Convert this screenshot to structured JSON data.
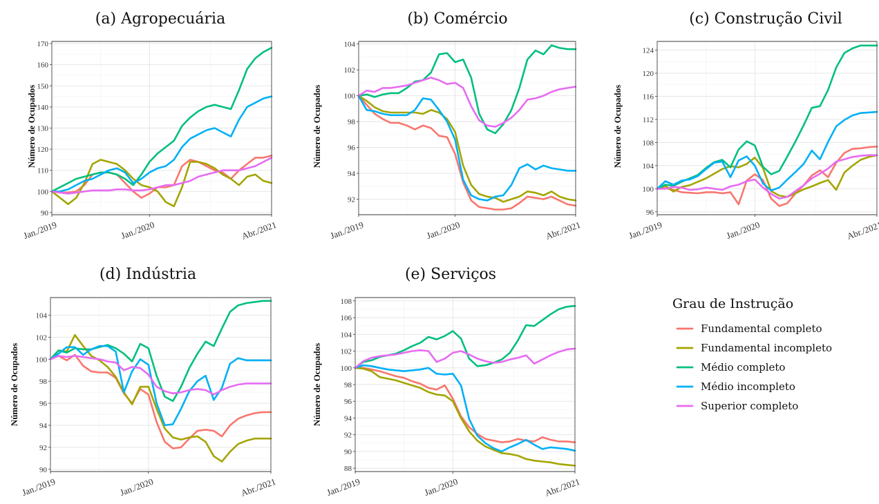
{
  "legend": {
    "title": "Grau de Instrução",
    "items": [
      {
        "name": "Fundamental completo",
        "color": "#F8766D"
      },
      {
        "name": "Fundamental incompleto",
        "color": "#A3A500"
      },
      {
        "name": "Médio completo",
        "color": "#00BF7D"
      },
      {
        "name": "Médio incompleto",
        "color": "#00B0F6"
      },
      {
        "name": "Superior completo",
        "color": "#E76BF3"
      }
    ]
  },
  "chart_data": [
    {
      "type": "line",
      "title": "(a) Agropecuária",
      "ylabel": "Número de Ocupados",
      "ylim": [
        89,
        171
      ],
      "yticks": [
        90,
        100,
        110,
        120,
        130,
        140,
        150,
        160,
        170
      ],
      "xticks": [
        {
          "x": 1,
          "label": "Jan./2019"
        },
        {
          "x": 13,
          "label": "Jan./2020"
        },
        {
          "x": 28,
          "label": "Abr./2021"
        }
      ],
      "series": [
        {
          "name": "Fundamental completo",
          "values": [
            100,
            99.5,
            99.5,
            100,
            103,
            108,
            109,
            109,
            108,
            104,
            100,
            97,
            99,
            102,
            102,
            103,
            112,
            115,
            114,
            112,
            110,
            109,
            106,
            110,
            113,
            116,
            116,
            117
          ]
        },
        {
          "name": "Fundamental incompleto",
          "values": [
            100,
            97,
            94,
            97,
            104,
            113,
            115,
            114,
            113,
            110,
            106,
            103,
            102,
            100,
            95,
            93,
            102,
            114,
            114,
            113,
            111,
            108,
            106,
            103,
            107,
            108,
            105,
            104
          ]
        },
        {
          "name": "Médio completo",
          "values": [
            100,
            102,
            104,
            106,
            107,
            108,
            109,
            109,
            108,
            106,
            103,
            108,
            114,
            118,
            121,
            124,
            131,
            135,
            138,
            140,
            141,
            140,
            139,
            148,
            158,
            163,
            166,
            168
          ]
        },
        {
          "name": "Médio incompleto",
          "values": [
            100,
            100,
            101,
            103,
            105,
            106,
            108,
            110,
            111,
            109,
            104,
            106,
            109,
            111,
            112,
            115,
            121,
            125,
            127,
            129,
            130,
            128,
            126,
            134,
            140,
            142,
            144,
            145
          ]
        },
        {
          "name": "Superior completo",
          "values": [
            100,
            99.5,
            99,
            99.5,
            100,
            100.5,
            100.5,
            100.5,
            101,
            101,
            100.5,
            100.5,
            101,
            102,
            103,
            103,
            104,
            105,
            107,
            108,
            109,
            110,
            110,
            110,
            111,
            112,
            114,
            116
          ]
        }
      ]
    },
    {
      "type": "line",
      "title": "(b) Comércio",
      "ylabel": "Número de Ocupados",
      "ylim": [
        90.8,
        104.2
      ],
      "yticks": [
        92,
        94,
        96,
        98,
        100,
        102,
        104
      ],
      "xticks": [
        {
          "x": 1,
          "label": "Jan./2019"
        },
        {
          "x": 13,
          "label": "Jan./2020"
        },
        {
          "x": 28,
          "label": "Abr./2021"
        }
      ],
      "series": [
        {
          "name": "Fundamental completo",
          "values": [
            100,
            99.3,
            98.6,
            98.2,
            97.9,
            97.9,
            97.7,
            97.4,
            97.7,
            97.5,
            96.9,
            96.8,
            95.5,
            93.3,
            91.9,
            91.4,
            91.3,
            91.2,
            91.2,
            91.3,
            91.7,
            92.2,
            92.1,
            92.0,
            92.2,
            91.9,
            91.6,
            91.5
          ]
        },
        {
          "name": "Fundamental incompleto",
          "values": [
            100,
            99.6,
            99.1,
            98.8,
            98.7,
            98.7,
            98.7,
            98.7,
            98.6,
            98.9,
            98.7,
            98.2,
            97.2,
            94.6,
            93.1,
            92.4,
            92.2,
            92.1,
            91.8,
            92.0,
            92.2,
            92.6,
            92.5,
            92.3,
            92.6,
            92.2,
            92.0,
            91.9
          ]
        },
        {
          "name": "Médio completo",
          "values": [
            100,
            100.1,
            99.9,
            100.1,
            100.2,
            100.2,
            100.6,
            101.1,
            101.2,
            101.8,
            103.2,
            103.3,
            102.6,
            102.8,
            101.4,
            98.6,
            97.4,
            97.1,
            97.8,
            98.9,
            100.6,
            102.8,
            103.5,
            103.2,
            103.9,
            103.7,
            103.6,
            103.6
          ]
        },
        {
          "name": "Médio incompleto",
          "values": [
            100,
            98.9,
            98.8,
            98.6,
            98.5,
            98.5,
            98.5,
            98.9,
            99.8,
            99.7,
            98.9,
            98.0,
            96.6,
            93.5,
            92.3,
            92.0,
            91.9,
            92.2,
            92.3,
            93.1,
            94.4,
            94.7,
            94.3,
            94.6,
            94.4,
            94.3,
            94.2,
            94.2
          ]
        },
        {
          "name": "Superior completo",
          "values": [
            100,
            100.4,
            100.3,
            100.6,
            100.6,
            100.7,
            100.8,
            101.0,
            101.2,
            101.4,
            101.2,
            100.9,
            101.0,
            100.6,
            99.2,
            98.1,
            97.7,
            97.6,
            97.9,
            98.3,
            98.9,
            99.7,
            99.8,
            100.0,
            100.3,
            100.5,
            100.6,
            100.7
          ]
        }
      ]
    },
    {
      "type": "line",
      "title": "(c) Construção Civil",
      "ylabel": "Número de Ocupados",
      "ylim": [
        95.5,
        125.5
      ],
      "yticks": [
        96,
        100,
        104,
        108,
        112,
        116,
        120,
        124
      ],
      "xticks": [
        {
          "x": 1,
          "label": "Jan./2019"
        },
        {
          "x": 13,
          "label": "Jan./2020"
        },
        {
          "x": 28,
          "label": "Abr./2021"
        }
      ],
      "series": [
        {
          "name": "Fundamental completo",
          "values": [
            100,
            100.1,
            99.8,
            99.4,
            99.3,
            99.2,
            99.4,
            99.4,
            99.2,
            99.4,
            97.3,
            101.4,
            102.5,
            101.5,
            98.3,
            97.0,
            97.5,
            99.2,
            100.6,
            102.3,
            103.2,
            102.0,
            104.5,
            106.2,
            106.9,
            107.0,
            107.2,
            107.3
          ]
        },
        {
          "name": "Fundamental incompleto",
          "values": [
            100,
            100.5,
            99.5,
            100.3,
            100.6,
            101.2,
            101.8,
            102.6,
            103.4,
            103.9,
            103.7,
            104.3,
            105.4,
            103.6,
            99.6,
            98.8,
            98.6,
            99.2,
            99.9,
            100.4,
            101.0,
            101.5,
            99.8,
            102.8,
            104.0,
            105.0,
            105.5,
            105.8
          ]
        },
        {
          "name": "Médio completo",
          "values": [
            100,
            100.7,
            100.5,
            101.2,
            101.8,
            102.4,
            103.6,
            104.6,
            105.0,
            103.7,
            106.8,
            108.2,
            107.5,
            103.8,
            102.5,
            103.1,
            105.6,
            108.2,
            111.0,
            114.0,
            114.3,
            117.1,
            121.0,
            123.5,
            124.3,
            124.8,
            124.8,
            124.8
          ]
        },
        {
          "name": "Médio incompleto",
          "values": [
            100,
            101.3,
            100.7,
            101.4,
            101.6,
            102.2,
            103.4,
            104.5,
            104.7,
            102.0,
            104.9,
            105.6,
            104.0,
            100.9,
            99.7,
            100.2,
            101.6,
            102.9,
            104.3,
            106.6,
            105.1,
            108.1,
            110.8,
            111.9,
            112.7,
            113.1,
            113.2,
            113.3
          ]
        },
        {
          "name": "Superior completo",
          "values": [
            100,
            100.0,
            100.3,
            100.2,
            99.8,
            99.9,
            100.2,
            100.0,
            99.8,
            100.4,
            100.7,
            101.3,
            101.6,
            100.2,
            99.1,
            98.3,
            98.6,
            99.6,
            100.6,
            101.8,
            102.6,
            103.5,
            104.7,
            105.1,
            105.5,
            105.7,
            105.8,
            105.8
          ]
        }
      ]
    },
    {
      "type": "line",
      "title": "(d) Indústria",
      "ylabel": "Número de Ocupados",
      "ylim": [
        89.8,
        105.6
      ],
      "yticks": [
        90,
        92,
        94,
        96,
        98,
        100,
        102,
        104
      ],
      "xticks": [
        {
          "x": 1,
          "label": "Jan./2019"
        },
        {
          "x": 13,
          "label": "Jan./2020"
        },
        {
          "x": 28,
          "label": "Abr./2021"
        }
      ],
      "series": [
        {
          "name": "Fundamental completo",
          "values": [
            100,
            100.3,
            99.9,
            100.4,
            99.4,
            98.9,
            98.8,
            98.8,
            98.3,
            96.9,
            96.0,
            97.3,
            96.8,
            94.3,
            92.5,
            91.9,
            92.0,
            92.8,
            93.5,
            93.6,
            93.5,
            93.0,
            94.0,
            94.6,
            94.9,
            95.1,
            95.2,
            95.2
          ]
        },
        {
          "name": "Fundamental incompleto",
          "values": [
            100,
            100.8,
            100.7,
            102.2,
            101.2,
            100.3,
            99.9,
            99.3,
            98.4,
            97.0,
            95.9,
            97.5,
            97.5,
            95.5,
            93.7,
            92.9,
            92.7,
            92.9,
            93.0,
            92.5,
            91.2,
            90.7,
            91.6,
            92.3,
            92.6,
            92.8,
            92.8,
            92.8
          ]
        },
        {
          "name": "Médio completo",
          "values": [
            100,
            100.8,
            100.6,
            101.0,
            100.9,
            100.9,
            101.1,
            101.3,
            101.0,
            100.5,
            99.8,
            101.4,
            101.0,
            98.5,
            96.6,
            96.2,
            97.5,
            99.2,
            100.5,
            101.6,
            101.2,
            102.8,
            104.3,
            104.9,
            105.1,
            105.2,
            105.3,
            105.3
          ]
        },
        {
          "name": "Médio incompleto",
          "values": [
            100,
            100.5,
            101.1,
            101.1,
            100.4,
            100.9,
            101.2,
            101.2,
            100.7,
            97.0,
            98.9,
            100.0,
            99.5,
            96.0,
            94.0,
            94.1,
            95.5,
            97.1,
            98.0,
            98.5,
            96.3,
            97.4,
            99.6,
            100.1,
            99.9,
            99.9,
            99.9,
            99.9
          ]
        },
        {
          "name": "Superior completo",
          "values": [
            100,
            100.3,
            100.2,
            100.3,
            100.2,
            100.1,
            100.0,
            99.8,
            99.7,
            99.0,
            99.3,
            99.2,
            98.6,
            97.5,
            97.1,
            96.9,
            97.0,
            97.2,
            97.3,
            97.2,
            96.8,
            97.2,
            97.5,
            97.7,
            97.8,
            97.8,
            97.8,
            97.8
          ]
        }
      ]
    },
    {
      "type": "line",
      "title": "(e) Serviços",
      "ylabel": "Número de Ocupados",
      "ylim": [
        87.6,
        108.4
      ],
      "yticks": [
        88,
        90,
        92,
        94,
        96,
        98,
        100,
        102,
        104,
        106,
        108
      ],
      "xticks": [
        {
          "x": 1,
          "label": "Jan./2019"
        },
        {
          "x": 13,
          "label": "Jan./2020"
        },
        {
          "x": 28,
          "label": "Abr./2021"
        }
      ],
      "series": [
        {
          "name": "Fundamental completo",
          "values": [
            100,
            100.0,
            99.8,
            99.6,
            99.3,
            99.0,
            98.8,
            98.4,
            98.1,
            97.6,
            97.4,
            97.9,
            96.3,
            94.2,
            92.9,
            92.1,
            91.5,
            91.3,
            91.1,
            91.2,
            91.5,
            91.3,
            91.2,
            91.7,
            91.4,
            91.2,
            91.2,
            91.1
          ]
        },
        {
          "name": "Fundamental incompleto",
          "values": [
            100,
            99.9,
            99.6,
            98.9,
            98.7,
            98.5,
            98.2,
            97.9,
            97.6,
            97.1,
            96.8,
            96.7,
            96.0,
            94.0,
            92.4,
            91.3,
            90.6,
            90.2,
            89.8,
            89.7,
            89.5,
            89.1,
            88.9,
            88.8,
            88.7,
            88.5,
            88.4,
            88.3
          ]
        },
        {
          "name": "Médio completo",
          "values": [
            100,
            100.7,
            100.9,
            101.3,
            101.5,
            101.7,
            102.1,
            102.6,
            103.0,
            103.7,
            103.4,
            103.8,
            104.4,
            103.5,
            101.1,
            100.2,
            100.3,
            100.6,
            101.0,
            101.8,
            103.3,
            105.1,
            105.0,
            105.7,
            106.4,
            107.0,
            107.3,
            107.4
          ]
        },
        {
          "name": "Médio incompleto",
          "values": [
            100,
            100.3,
            100.2,
            100.0,
            99.8,
            99.7,
            99.6,
            99.7,
            99.8,
            100.0,
            99.3,
            99.2,
            99.3,
            97.9,
            93.9,
            91.9,
            91.0,
            90.4,
            90.0,
            90.5,
            90.9,
            91.4,
            90.8,
            90.3,
            90.5,
            90.4,
            90.3,
            90.1
          ]
        },
        {
          "name": "Superior completo",
          "values": [
            100,
            100.8,
            101.2,
            101.4,
            101.5,
            101.6,
            101.8,
            102.0,
            102.1,
            102.0,
            100.7,
            101.1,
            101.8,
            102.0,
            101.6,
            101.1,
            100.8,
            100.6,
            100.7,
            101.0,
            101.2,
            101.5,
            100.5,
            101.0,
            101.5,
            101.9,
            102.2,
            102.3
          ]
        }
      ]
    }
  ]
}
